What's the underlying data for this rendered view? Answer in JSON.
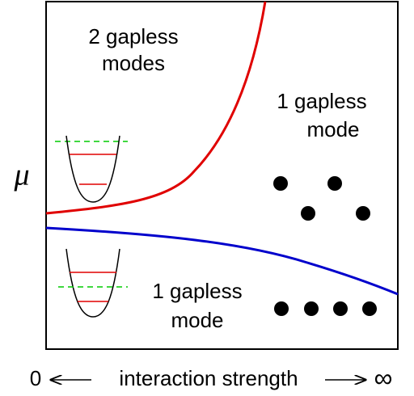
{
  "regions": [
    {
      "lines": [
        "2 gapless",
        "modes"
      ]
    },
    {
      "lines": [
        "1 gapless",
        "mode"
      ]
    },
    {
      "lines": [
        "1 gapless",
        "mode"
      ]
    }
  ],
  "y_label": "μ",
  "x_label": {
    "start": "0",
    "text": "interaction strength",
    "end": "∞"
  }
}
